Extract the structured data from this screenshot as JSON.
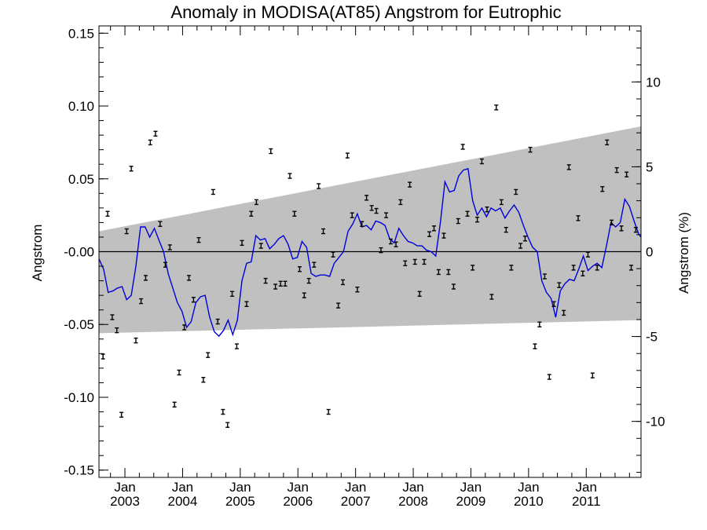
{
  "chart_data": {
    "type": "scatter",
    "title": "Anomaly in MODISA(AT85) Angstrom for Eutrophic",
    "ylabel_left": "Angstrom",
    "ylabel_right": "Angstrom (%)",
    "xlim": [
      2002.55,
      2011.95
    ],
    "ylim_left": [
      -0.155,
      0.155
    ],
    "ylim_right": [
      -13.3,
      13.3
    ],
    "left_ticks": [
      {
        "value": 0.15,
        "label": "0.15"
      },
      {
        "value": 0.1,
        "label": "0.10"
      },
      {
        "value": 0.05,
        "label": "0.05"
      },
      {
        "value": 0.0,
        "label": "-0.00"
      },
      {
        "value": -0.05,
        "label": "-0.05"
      },
      {
        "value": -0.1,
        "label": "-0.10"
      },
      {
        "value": -0.15,
        "label": "-0.15"
      }
    ],
    "right_ticks": [
      {
        "value": 10,
        "label": "10"
      },
      {
        "value": 5,
        "label": "5"
      },
      {
        "value": 0,
        "label": "0"
      },
      {
        "value": -5,
        "label": "-5"
      },
      {
        "value": -10,
        "label": "-10"
      }
    ],
    "x_ticks": [
      {
        "value": 2003.0,
        "month": "Jan",
        "year": "2003"
      },
      {
        "value": 2004.0,
        "month": "Jan",
        "year": "2004"
      },
      {
        "value": 2005.0,
        "month": "Jan",
        "year": "2005"
      },
      {
        "value": 2006.0,
        "month": "Jan",
        "year": "2006"
      },
      {
        "value": 2007.0,
        "month": "Jan",
        "year": "2007"
      },
      {
        "value": 2008.0,
        "month": "Jan",
        "year": "2008"
      },
      {
        "value": 2009.0,
        "month": "Jan",
        "year": "2009"
      },
      {
        "value": 2010.0,
        "month": "Jan",
        "year": "2010"
      },
      {
        "value": 2011.0,
        "month": "Jan",
        "year": "2011"
      }
    ],
    "envelope": {
      "x": [
        2002.55,
        2011.95
      ],
      "upper": [
        0.014,
        0.086
      ],
      "lower": [
        -0.056,
        -0.047
      ]
    },
    "zero_line": 0.0,
    "points": {
      "x": [
        2002.62,
        2002.7,
        2002.78,
        2002.86,
        2002.94,
        2003.03,
        2003.11,
        2003.19,
        2003.28,
        2003.36,
        2003.44,
        2003.53,
        2003.61,
        2003.7,
        2003.78,
        2003.86,
        2003.94,
        2004.03,
        2004.11,
        2004.19,
        2004.28,
        2004.36,
        2004.44,
        2004.53,
        2004.61,
        2004.7,
        2004.78,
        2004.86,
        2004.94,
        2005.03,
        2005.11,
        2005.19,
        2005.28,
        2005.36,
        2005.44,
        2005.53,
        2005.61,
        2005.7,
        2005.78,
        2005.86,
        2005.94,
        2006.03,
        2006.11,
        2006.19,
        2006.28,
        2006.36,
        2006.44,
        2006.53,
        2006.61,
        2006.7,
        2006.78,
        2006.86,
        2006.94,
        2007.03,
        2007.11,
        2007.19,
        2007.28,
        2007.36,
        2007.44,
        2007.53,
        2007.61,
        2007.7,
        2007.78,
        2007.86,
        2007.94,
        2008.03,
        2008.11,
        2008.19,
        2008.28,
        2008.36,
        2008.44,
        2008.53,
        2008.61,
        2008.7,
        2008.78,
        2008.86,
        2008.94,
        2009.03,
        2009.11,
        2009.19,
        2009.28,
        2009.36,
        2009.44,
        2009.53,
        2009.61,
        2009.7,
        2009.78,
        2009.86,
        2009.94,
        2010.03,
        2010.11,
        2010.19,
        2010.28,
        2010.36,
        2010.44,
        2010.53,
        2010.61,
        2010.7,
        2010.78,
        2010.86,
        2010.94,
        2011.03,
        2011.11,
        2011.19,
        2011.28,
        2011.36,
        2011.44,
        2011.53,
        2011.61,
        2011.7,
        2011.78,
        2011.86
      ],
      "y": [
        -0.072,
        0.026,
        -0.045,
        -0.054,
        -0.112,
        0.014,
        0.057,
        -0.061,
        -0.034,
        -0.018,
        0.075,
        0.081,
        0.019,
        -0.009,
        0.003,
        -0.105,
        -0.083,
        -0.052,
        -0.018,
        -0.033,
        0.008,
        -0.088,
        -0.071,
        0.041,
        -0.048,
        -0.11,
        -0.119,
        -0.029,
        -0.065,
        0.006,
        -0.036,
        0.026,
        0.034,
        0.004,
        -0.02,
        0.069,
        -0.024,
        -0.022,
        -0.022,
        0.052,
        0.026,
        -0.012,
        -0.03,
        -0.02,
        -0.009,
        0.045,
        0.014,
        -0.11,
        -0.002,
        -0.037,
        -0.021,
        0.066,
        0.025,
        -0.026,
        0.019,
        0.037,
        0.03,
        0.028,
        0.001,
        0.025,
        0.007,
        0.005,
        0.034,
        -0.008,
        0.046,
        -0.007,
        -0.029,
        -0.007,
        0.012,
        0.016,
        -0.014,
        0.011,
        -0.014,
        -0.024,
        0.021,
        0.072,
        0.026,
        -0.011,
        0.022,
        0.062,
        0.029,
        -0.031,
        0.099,
        0.034,
        0.015,
        -0.011,
        0.041,
        0.004,
        0.009,
        0.07,
        -0.065,
        -0.05,
        -0.017,
        -0.086,
        -0.036,
        -0.023,
        -0.042,
        0.058,
        -0.011,
        0.023,
        -0.015,
        -0.002,
        -0.085,
        -0.011,
        0.043,
        0.075,
        0.02,
        0.056,
        0.016,
        0.053,
        -0.011,
        0.015
      ]
    },
    "running_mean": {
      "x": [
        2002.55,
        2002.63,
        2002.71,
        2002.79,
        2002.87,
        2002.95,
        2003.03,
        2003.11,
        2003.19,
        2003.27,
        2003.35,
        2003.43,
        2003.51,
        2003.59,
        2003.67,
        2003.75,
        2003.83,
        2003.91,
        2003.99,
        2004.07,
        2004.15,
        2004.23,
        2004.31,
        2004.39,
        2004.47,
        2004.55,
        2004.63,
        2004.71,
        2004.79,
        2004.87,
        2004.95,
        2005.03,
        2005.11,
        2005.19,
        2005.27,
        2005.35,
        2005.43,
        2005.51,
        2005.59,
        2005.67,
        2005.75,
        2005.83,
        2005.91,
        2005.99,
        2006.07,
        2006.15,
        2006.23,
        2006.31,
        2006.39,
        2006.47,
        2006.55,
        2006.63,
        2006.71,
        2006.79,
        2006.87,
        2006.95,
        2007.03,
        2007.11,
        2007.19,
        2007.27,
        2007.35,
        2007.43,
        2007.51,
        2007.59,
        2007.67,
        2007.75,
        2007.83,
        2007.91,
        2007.99,
        2008.07,
        2008.15,
        2008.23,
        2008.31,
        2008.39,
        2008.47,
        2008.55,
        2008.63,
        2008.71,
        2008.79,
        2008.87,
        2008.95,
        2009.03,
        2009.11,
        2009.19,
        2009.27,
        2009.35,
        2009.43,
        2009.51,
        2009.59,
        2009.67,
        2009.75,
        2009.83,
        2009.91,
        2009.99,
        2010.07,
        2010.15,
        2010.23,
        2010.31,
        2010.39,
        2010.47,
        2010.55,
        2010.63,
        2010.71,
        2010.79,
        2010.87,
        2010.95,
        2011.03,
        2011.11,
        2011.19,
        2011.27,
        2011.35,
        2011.43,
        2011.51,
        2011.59,
        2011.67,
        2011.75,
        2011.83,
        2011.91,
        2011.95
      ],
      "y": [
        -0.005,
        -0.012,
        -0.028,
        -0.027,
        -0.025,
        -0.024,
        -0.033,
        -0.03,
        -0.01,
        0.017,
        0.017,
        0.01,
        0.016,
        0.008,
        0.0,
        -0.015,
        -0.025,
        -0.035,
        -0.041,
        -0.052,
        -0.048,
        -0.035,
        -0.031,
        -0.03,
        -0.045,
        -0.055,
        -0.058,
        -0.054,
        -0.047,
        -0.057,
        -0.047,
        -0.02,
        -0.008,
        -0.007,
        0.011,
        0.008,
        0.009,
        0.002,
        0.005,
        0.009,
        0.011,
        0.005,
        -0.005,
        -0.004,
        0.007,
        0.003,
        -0.015,
        -0.017,
        -0.016,
        -0.016,
        -0.017,
        -0.008,
        -0.004,
        0.0,
        0.014,
        0.019,
        0.026,
        0.017,
        0.018,
        0.015,
        0.021,
        0.02,
        0.018,
        0.009,
        0.006,
        0.016,
        0.011,
        0.007,
        0.006,
        0.004,
        0.004,
        0.001,
        0.0,
        -0.003,
        0.02,
        0.048,
        0.041,
        0.042,
        0.052,
        0.056,
        0.057,
        0.035,
        0.025,
        0.03,
        0.024,
        0.03,
        0.028,
        0.03,
        0.023,
        0.028,
        0.032,
        0.027,
        0.018,
        0.01,
        0.003,
        0.0,
        -0.02,
        -0.028,
        -0.032,
        -0.045,
        -0.027,
        -0.022,
        -0.019,
        -0.02,
        -0.012,
        -0.003,
        -0.013,
        -0.01,
        -0.008,
        -0.011,
        0.004,
        0.02,
        0.017,
        0.02,
        0.036,
        0.031,
        0.021,
        0.012,
        0.01
      ]
    },
    "colors": {
      "envelope": "#c0c0c0",
      "running_mean": "#0000dd",
      "points": "#000000",
      "zero_line": "#000000"
    },
    "grid": false,
    "legend": "none"
  }
}
